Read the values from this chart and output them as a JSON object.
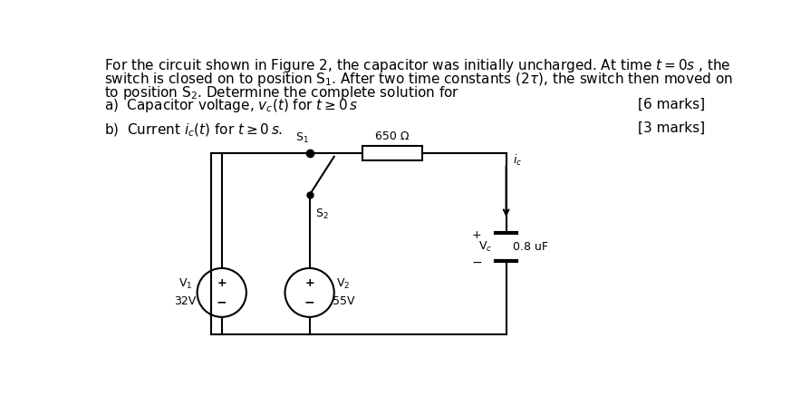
{
  "background_color": "#ffffff",
  "lines": [
    "For the circuit shown in Figure 2, the capacitor was initially uncharged. At time $t = 0s$ , the",
    "switch is closed on to position S$_1$. After two time constants $(2\\tau)$, the switch then moved on",
    "to position S$_2$. Determine the complete solution for"
  ],
  "part_a": "a)  Capacitor voltage, $v_c(t)$ for $t \\geq 0\\,s$",
  "part_a_marks": "[6 marks]",
  "part_b": "b)  Current $i_c(t)$ for $t \\geq 0\\,s$.",
  "part_b_marks": "[3 marks]",
  "font_size_body": 11,
  "circuit": {
    "V1_label": "V$_1$",
    "V1_value": "32V",
    "V2_label": "V$_2$",
    "V2_value": "55V",
    "R_label": "650 Ω",
    "C_label": "0.8 uF",
    "Vc_label": "V$_c$",
    "ic_label": "$i_c$",
    "S1_label": "S$_1$",
    "S2_label": "S$_2$"
  }
}
